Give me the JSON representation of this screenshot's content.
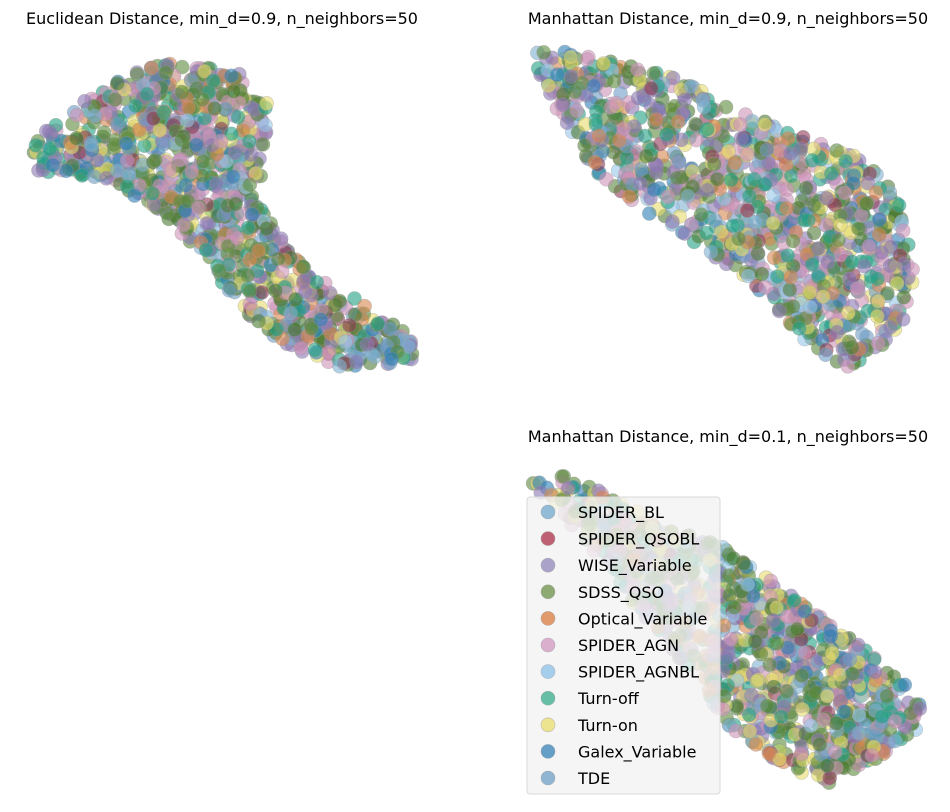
{
  "chart_data": [
    {
      "type": "scatter",
      "title": "Euclidean Distance, min_d=0.9, n_neighbors=50",
      "xlim": [
        0,
        10
      ],
      "ylim": [
        0,
        8
      ],
      "axes": "off",
      "grid": false,
      "shape": [
        [
          0.2,
          5.6
        ],
        [
          1.5,
          6.6
        ],
        [
          3.3,
          7.6
        ],
        [
          5.5,
          7.3
        ],
        [
          6.2,
          6.5
        ],
        [
          6.0,
          5.0
        ],
        [
          6.0,
          4.0
        ],
        [
          6.8,
          2.8
        ],
        [
          8.8,
          1.5
        ],
        [
          10,
          0.8
        ],
        [
          9.8,
          0.2
        ],
        [
          8.0,
          0.1
        ],
        [
          6.5,
          0.7
        ],
        [
          5.3,
          1.7
        ],
        [
          4.5,
          2.9
        ],
        [
          3.5,
          3.8
        ],
        [
          2.2,
          4.7
        ],
        [
          0.3,
          4.9
        ]
      ],
      "regions": [
        {
          "center": [
            9.0,
            0.6
          ],
          "radius": [
            1.2,
            0.5
          ],
          "bias": [
            0,
            9,
            10
          ]
        },
        {
          "center": [
            0.8,
            5.1
          ],
          "radius": [
            0.9,
            0.6
          ],
          "bias": [
            7,
            9
          ]
        },
        {
          "center": [
            5.4,
            6.5
          ],
          "radius": [
            0.9,
            0.6
          ],
          "bias": [
            8,
            5
          ]
        }
      ]
    },
    {
      "type": "scatter",
      "title": "Manhattan Distance, min_d=0.9, n_neighbors=50",
      "xlim": [
        0,
        10
      ],
      "ylim": [
        0,
        8
      ],
      "axes": "off",
      "grid": false,
      "shape": [
        [
          0.1,
          8.0
        ],
        [
          1.2,
          7.8
        ],
        [
          3.5,
          7.3
        ],
        [
          6.5,
          5.9
        ],
        [
          8.3,
          5.3
        ],
        [
          9.3,
          4.5
        ],
        [
          9.8,
          2.8
        ],
        [
          9.8,
          1.5
        ],
        [
          9.0,
          0.5
        ],
        [
          8.1,
          0.0
        ],
        [
          7.2,
          0.5
        ],
        [
          6.0,
          1.8
        ],
        [
          4.8,
          2.7
        ],
        [
          3.2,
          3.7
        ],
        [
          1.8,
          4.7
        ],
        [
          0.8,
          6.1
        ],
        [
          0.0,
          7.5
        ]
      ],
      "regions": [
        {
          "center": [
            0.6,
            7.7
          ],
          "radius": [
            0.8,
            0.5
          ],
          "bias": [
            0,
            9,
            4
          ]
        },
        {
          "center": [
            8.5,
            0.8
          ],
          "radius": [
            0.9,
            0.6
          ],
          "bias": [
            7,
            10
          ]
        },
        {
          "center": [
            7.2,
            5.0
          ],
          "radius": [
            1.0,
            0.6
          ],
          "bias": [
            8,
            5
          ]
        }
      ]
    },
    {
      "type": "scatter",
      "title": "Manhattan Distance, min_d=0.1, n_neighbors=50",
      "xlim": [
        0,
        10
      ],
      "ylim": [
        0,
        8
      ],
      "axes": "off",
      "grid": false,
      "legend": "upper-left",
      "shape": [
        [
          0.0,
          7.6
        ],
        [
          1.0,
          7.8
        ],
        [
          2.6,
          6.9
        ],
        [
          5.0,
          5.9
        ],
        [
          6.8,
          4.6
        ],
        [
          8.2,
          3.6
        ],
        [
          9.6,
          2.4
        ],
        [
          10.0,
          1.6
        ],
        [
          8.6,
          0.6
        ],
        [
          7.5,
          0.0
        ],
        [
          6.2,
          0.6
        ],
        [
          5.0,
          1.5
        ],
        [
          4.0,
          2.9
        ],
        [
          2.8,
          4.3
        ],
        [
          1.8,
          5.6
        ],
        [
          0.8,
          6.8
        ]
      ],
      "regions": [
        {
          "center": [
            0.7,
            7.6
          ],
          "radius": [
            0.7,
            0.4
          ],
          "bias": [
            0,
            9
          ]
        },
        {
          "center": [
            9.0,
            1.5
          ],
          "radius": [
            0.8,
            0.5
          ],
          "bias": [
            7,
            10
          ]
        },
        {
          "center": [
            6.0,
            2.7
          ],
          "radius": [
            0.9,
            0.6
          ],
          "bias": [
            8,
            5,
            2
          ]
        }
      ]
    }
  ],
  "legend": {
    "items": [
      {
        "label": "SPIDER_BL",
        "color": "#7fb0d0"
      },
      {
        "label": "SPIDER_QSOBL",
        "color": "#b4485c"
      },
      {
        "label": "WISE_Variable",
        "color": "#9d93c2"
      },
      {
        "label": "SDSS_QSO",
        "color": "#7b9c5c"
      },
      {
        "label": "Optical_Variable",
        "color": "#dd8a52"
      },
      {
        "label": "SPIDER_AGN",
        "color": "#d5a1c6"
      },
      {
        "label": "SPIDER_AGNBL",
        "color": "#96c6ea"
      },
      {
        "label": "Turn-off",
        "color": "#4cb595"
      },
      {
        "label": "Turn-on",
        "color": "#ebe07c"
      },
      {
        "label": "Galex_Variable",
        "color": "#4b8fc0"
      },
      {
        "label": "TDE",
        "color": "#7ca9cb"
      }
    ]
  }
}
